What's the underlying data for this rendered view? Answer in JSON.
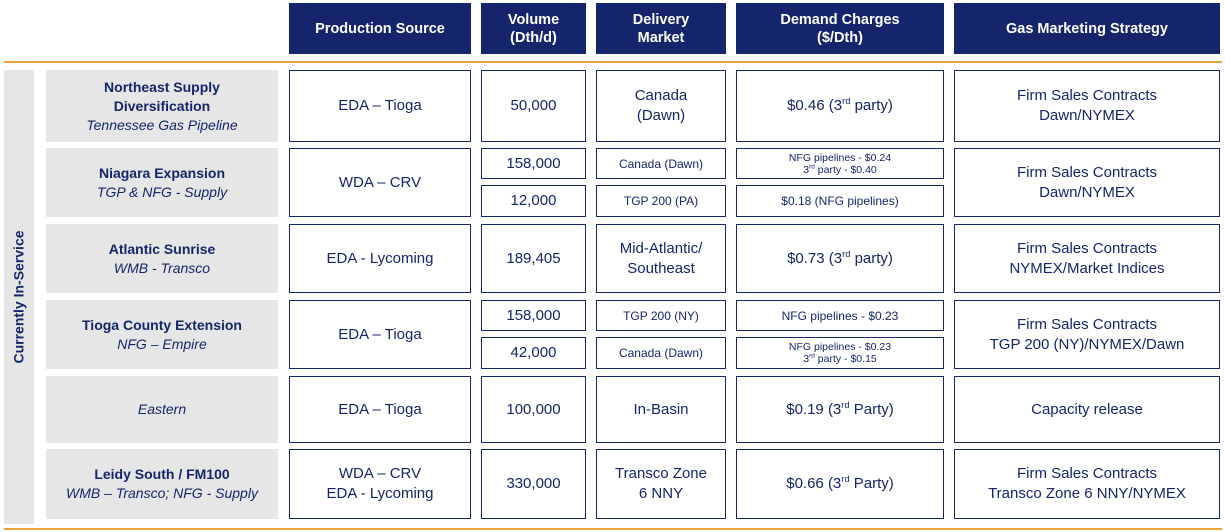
{
  "headers": {
    "production_source": "Production Source",
    "volume_line1": "Volume",
    "volume_line2": "(Dth/d)",
    "delivery_line1": "Delivery",
    "delivery_line2": "Market",
    "demand_line1": "Demand Charges",
    "demand_line2": "($/Dth)",
    "strategy": "Gas Marketing Strategy"
  },
  "sidebar_label": "Currently  In-Service",
  "rows": [
    {
      "title_line1": "Northeast Supply",
      "title_line2": "Diversification",
      "subtitle": "Tennessee Gas Pipeline",
      "source": "EDA  – Tioga",
      "volume": "50,000",
      "market_line1": "Canada",
      "market_line2": "(Dawn)",
      "charge_pre": "$0.46 (3",
      "charge_sup": "rd",
      "charge_post": " party)",
      "strategy_line1": "Firm Sales Contracts",
      "strategy_line2": "Dawn/NYMEX"
    },
    {
      "title": "Niagara Expansion",
      "subtitle": "TGP & NFG - Supply",
      "source": "WDA – CRV",
      "sub_a": {
        "volume": "158,000",
        "market": "Canada (Dawn)",
        "charge_line1": "NFG pipelines - $0.24",
        "charge_line2_pre": "3",
        "charge_line2_sup": "rd",
        "charge_line2_post": " party - $0.40"
      },
      "sub_b": {
        "volume": "12,000",
        "market": "TGP 200 (PA)",
        "charge": "$0.18 (NFG pipelines)"
      },
      "strategy_line1": "Firm Sales Contracts",
      "strategy_line2": "Dawn/NYMEX"
    },
    {
      "title": "Atlantic Sunrise",
      "subtitle": "WMB - Transco",
      "source": "EDA - Lycoming",
      "volume": "189,405",
      "market_line1": "Mid-Atlantic/",
      "market_line2": "Southeast",
      "charge_pre": "$0.73 (3",
      "charge_sup": "rd",
      "charge_post": " party)",
      "strategy_line1": "Firm Sales Contracts",
      "strategy_line2": "NYMEX/Market Indices"
    },
    {
      "title": "Tioga County Extension",
      "subtitle": "NFG – Empire",
      "source": "EDA – Tioga",
      "sub_a": {
        "volume": "158,000",
        "market": "TGP 200 (NY)",
        "charge": "NFG pipelines - $0.23"
      },
      "sub_b": {
        "volume": "42,000",
        "market": "Canada (Dawn)",
        "charge_line1": "NFG pipelines - $0.23",
        "charge_line2_pre": "3",
        "charge_line2_sup": "rd",
        "charge_line2_post": " party - $0.15"
      },
      "strategy_line1": "Firm Sales Contracts",
      "strategy_line2": "TGP 200 (NY)/NYMEX/Dawn"
    },
    {
      "subtitle": "Eastern",
      "source": "EDA – Tioga",
      "volume": "100,000",
      "market": "In-Basin",
      "charge_pre": "$0.19 (3",
      "charge_sup": "rd",
      "charge_post": " Party)",
      "strategy": "Capacity release"
    },
    {
      "title": "Leidy South / FM100",
      "subtitle": "WMB – Transco; NFG - Supply",
      "source_line1": "WDA – CRV",
      "source_line2": "EDA - Lycoming",
      "volume": "330,000",
      "market_line1": "Transco Zone",
      "market_line2": "6 NNY",
      "charge_pre": "$0.66 (3",
      "charge_sup": "rd",
      "charge_post": " Party)",
      "strategy_line1": "Firm Sales Contracts",
      "strategy_line2": "Transco Zone 6 NNY/NYMEX"
    }
  ],
  "colors": {
    "header_bg": "#14256b",
    "accent_gold": "#e8a33a",
    "label_bg": "#e6e6e6",
    "text_navy": "#14256b"
  }
}
